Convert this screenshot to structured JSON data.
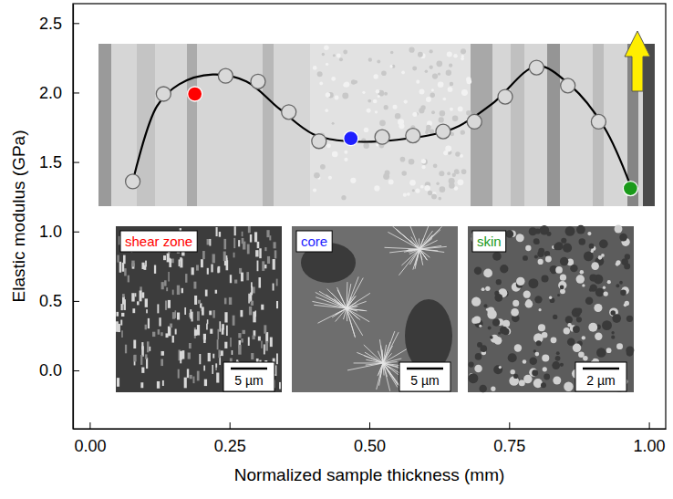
{
  "chart_data": {
    "type": "line",
    "x_label": "Normalized sample thickness (mm)",
    "y_label": "Elastic modulus (GPa)",
    "xlim": [
      -0.03,
      1.03
    ],
    "ylim": [
      -0.42,
      2.64
    ],
    "xticks": [
      {
        "value": 0,
        "label": "0.00"
      },
      0.25,
      {
        "value": 0.5,
        "label": "0.50"
      },
      0.75,
      {
        "value": 1,
        "label": "1.00"
      }
    ],
    "yticks": [
      {
        "value": 0,
        "label": "0.0"
      },
      0.5,
      {
        "value": 1,
        "label": "1.0"
      },
      1.5,
      {
        "value": 2,
        "label": "2.0"
      },
      2.5
    ],
    "grid": false,
    "series": [
      {
        "type": "line",
        "color": "#000000",
        "line_style": "solid",
        "x": [
          0.077,
          0.12,
          0.16,
          0.22,
          0.28,
          0.34,
          0.4,
          0.46,
          0.55,
          0.65,
          0.72,
          0.8,
          0.86,
          0.92,
          0.967
        ],
        "values": [
          1.36,
          1.9,
          2.06,
          2.13,
          2.08,
          1.88,
          1.7,
          1.65,
          1.66,
          1.74,
          1.92,
          2.19,
          2.05,
          1.75,
          1.33
        ]
      },
      {
        "type": "scatter",
        "marker": "circle",
        "color": "#d9d9d9",
        "colors": [
          "#d9d9d9",
          "#d9d9d9",
          "#ff0000",
          "#d9d9d9",
          "#d9d9d9",
          "#d9d9d9",
          "#d9d9d9",
          "#1f1fff",
          "#d9d9d9",
          "#d9d9d9",
          "#d9d9d9",
          "#d9d9d9",
          "#d9d9d9",
          "#d9d9d9",
          "#d9d9d9",
          "#d9d9d9",
          "#1a9a1a"
        ],
        "x": [
          0.077,
          0.132,
          0.188,
          0.243,
          0.301,
          0.356,
          0.41,
          0.467,
          0.523,
          0.578,
          0.632,
          0.688,
          0.743,
          0.799,
          0.855,
          0.91,
          0.967
        ],
        "values": [
          1.36,
          1.99,
          1.99,
          2.12,
          2.08,
          1.86,
          1.65,
          1.67,
          1.68,
          1.69,
          1.72,
          1.79,
          1.97,
          2.18,
          2.05,
          1.79,
          1.31
        ]
      }
    ],
    "annotations": [
      {
        "text": "shear zone",
        "color": "#ff0000",
        "scale_bar": "5 µm"
      },
      {
        "text": "core",
        "color": "#1f1fff",
        "scale_bar": "5 µm"
      },
      {
        "text": "skin",
        "color": "#1a9a1a",
        "scale_bar": "2 µm"
      }
    ]
  }
}
